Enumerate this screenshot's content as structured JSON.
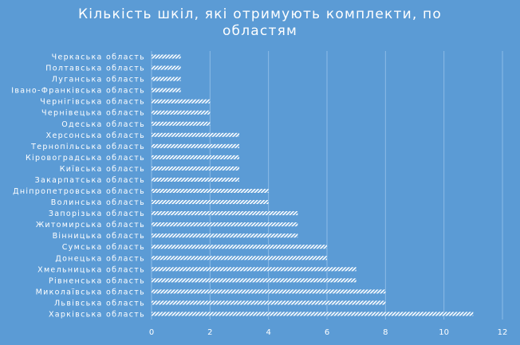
{
  "chart_data": {
    "type": "bar",
    "orientation": "horizontal",
    "title_lines": [
      "Кількість шкіл, які отримують комплекти, по",
      "областям"
    ],
    "categories": [
      "Черкаська область",
      "Полтавська область",
      "Луганська область",
      "Івано-Франківська область",
      "Чернігівська область",
      "Чернівецька область",
      "Одеська область",
      "Херсонська область",
      "Тернопільська область",
      "Кіровоградська область",
      "Київська область",
      "Закарпатська область",
      "Дніпропетровська область",
      "Волинська область",
      "Запорізька область",
      "Житомирська область",
      "Вінницька область",
      "Сумська область",
      "Донецька область",
      "Хмельницька область",
      "Рівненська область",
      "Миколаївська область",
      "Львівська область",
      "Харківська область"
    ],
    "values": [
      1,
      1,
      1,
      1,
      2,
      2,
      2,
      3,
      3,
      3,
      3,
      3,
      4,
      4,
      5,
      5,
      5,
      6,
      6,
      7,
      7,
      8,
      8,
      11
    ],
    "xlim": [
      0,
      12
    ],
    "xticks": [
      "0",
      "2",
      "4",
      "6",
      "8",
      "10",
      "12"
    ],
    "grid": true,
    "legend": "none",
    "bar_pattern": "diagonal-stripes",
    "colors": {
      "background": "#5b9bd5",
      "bar": "#ffffff",
      "text": "#ffffff",
      "grid": "#8dbbe6"
    }
  }
}
